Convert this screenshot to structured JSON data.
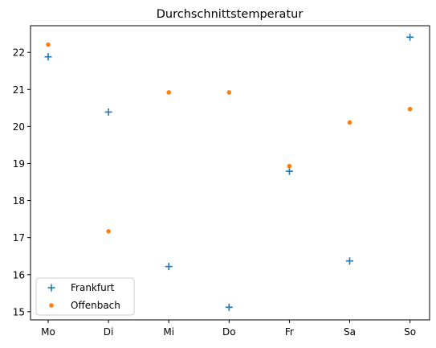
{
  "chart_data": {
    "type": "scatter",
    "title": "Durchschnittstemperatur",
    "xlabel": "",
    "ylabel": "",
    "categories": [
      "Mo",
      "Di",
      "Mi",
      "Do",
      "Fr",
      "Sa",
      "So"
    ],
    "ylim": [
      14.78,
      22.72
    ],
    "yticks": [
      15,
      16,
      17,
      18,
      19,
      20,
      21,
      22
    ],
    "grid": false,
    "legend_position": "lower-left",
    "series": [
      {
        "name": "Frankfurt",
        "marker": "plus",
        "color": "#1f77b4",
        "values": [
          21.88,
          20.39,
          16.22,
          15.12,
          18.79,
          16.37,
          22.41
        ]
      },
      {
        "name": "Offenbach",
        "marker": "dot",
        "color": "#ff7f0e",
        "values": [
          22.21,
          17.17,
          20.92,
          20.92,
          18.93,
          20.11,
          20.47
        ]
      }
    ]
  }
}
